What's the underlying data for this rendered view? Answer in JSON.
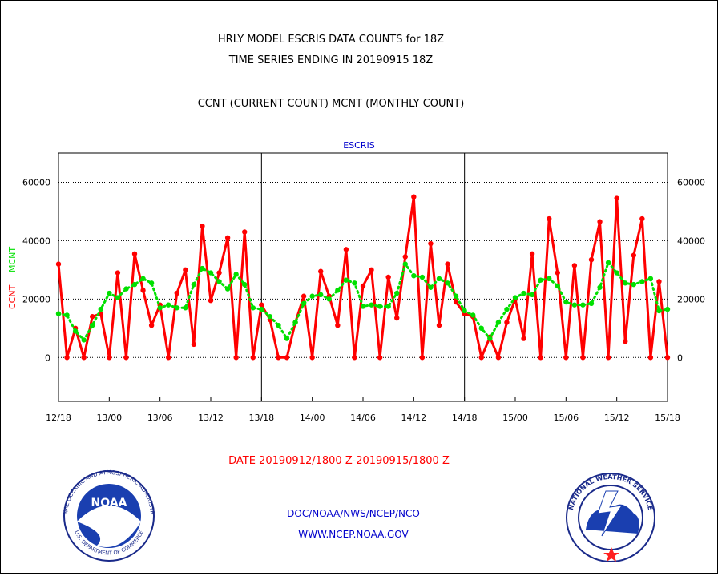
{
  "header": {
    "title_line1": "HRLY MODEL ESCRIS DATA COUNTS for 18Z",
    "title_line2": "TIME SERIES ENDING IN 20190915 18Z",
    "subtitle": "CCNT (CURRENT COUNT) MCNT (MONTHLY COUNT)",
    "panel_label": "ESCRIS"
  },
  "footer": {
    "date_range": "DATE 20190912/1800 Z-20190915/1800 Z",
    "org_line": "DOC/NOAA/NWS/NCEP/NCO",
    "url_line": "WWW.NCEP.NOAA.GOV",
    "noaa_logo_text": "NOAA",
    "noaa_ring_text": "NATIONAL OCEANIC AND ATMOSPHERIC ADMINISTRATION",
    "noaa_ring_bottom": "U.S. DEPARTMENT OF COMMERCE",
    "nws_ring_text": "NATIONAL WEATHER SERVICE"
  },
  "colors": {
    "ccnt": "#ff0000",
    "mcnt": "#00e000",
    "axis": "#000000",
    "label_blue": "#0000cc",
    "date_red": "#ff0000"
  },
  "chart_data": {
    "type": "line",
    "ylabel_ccnt": "CCNT",
    "ylabel_mcnt": "MCNT",
    "ylim": [
      -15000,
      70000
    ],
    "yticks": [
      0,
      20000,
      40000,
      60000
    ],
    "ytick_labels": [
      "0",
      "20000",
      "40000",
      "60000"
    ],
    "xlim": [
      0,
      72
    ],
    "xticks": [
      0,
      6,
      12,
      18,
      24,
      30,
      36,
      42,
      48,
      54,
      60,
      66,
      72
    ],
    "xtick_labels": [
      "12/18",
      "13/00",
      "13/06",
      "13/12",
      "13/18",
      "14/00",
      "14/06",
      "14/12",
      "14/18",
      "15/00",
      "15/06",
      "15/12",
      "15/18"
    ],
    "day_dividers": [
      24,
      48
    ],
    "grid": "horizontal dotted",
    "series": [
      {
        "name": "CCNT",
        "values": [
          32000,
          0,
          10000,
          0,
          14000,
          15000,
          0,
          29000,
          0,
          35500,
          23000,
          11000,
          18000,
          0,
          22000,
          30000,
          4500,
          45000,
          19500,
          29000,
          41000,
          0,
          43000,
          0,
          18000,
          13000,
          0,
          0,
          12000,
          21000,
          0,
          29500,
          21000,
          11000,
          37000,
          0,
          24500,
          30000,
          0,
          27500,
          13500,
          34500,
          55000,
          0,
          39000,
          11000,
          32000,
          19000,
          15000,
          14000,
          0,
          7000,
          0,
          12000,
          20000,
          6500,
          35500,
          0,
          47500,
          29000,
          0,
          31500,
          0,
          33500,
          46500,
          0,
          54500,
          5500,
          35000,
          47500,
          0,
          26000,
          0
        ]
      },
      {
        "name": "MCNT",
        "values": [
          15000,
          14500,
          9000,
          6000,
          11000,
          16500,
          22000,
          20500,
          23500,
          25000,
          27000,
          25500,
          17000,
          18000,
          17000,
          17000,
          25000,
          30500,
          29000,
          26000,
          23500,
          28500,
          25000,
          17000,
          16500,
          14000,
          11000,
          6500,
          12000,
          18500,
          21000,
          21500,
          20000,
          23000,
          26500,
          25500,
          17500,
          18000,
          17500,
          17500,
          22000,
          32000,
          28000,
          27500,
          24000,
          27000,
          25500,
          21000,
          16000,
          14500,
          10000,
          6500,
          12000,
          16500,
          20500,
          22000,
          21500,
          26500,
          27000,
          24500,
          19000,
          18000,
          18000,
          18500,
          24000,
          32500,
          29000,
          25500,
          25000,
          26000,
          27000,
          16000,
          16500
        ]
      }
    ]
  }
}
